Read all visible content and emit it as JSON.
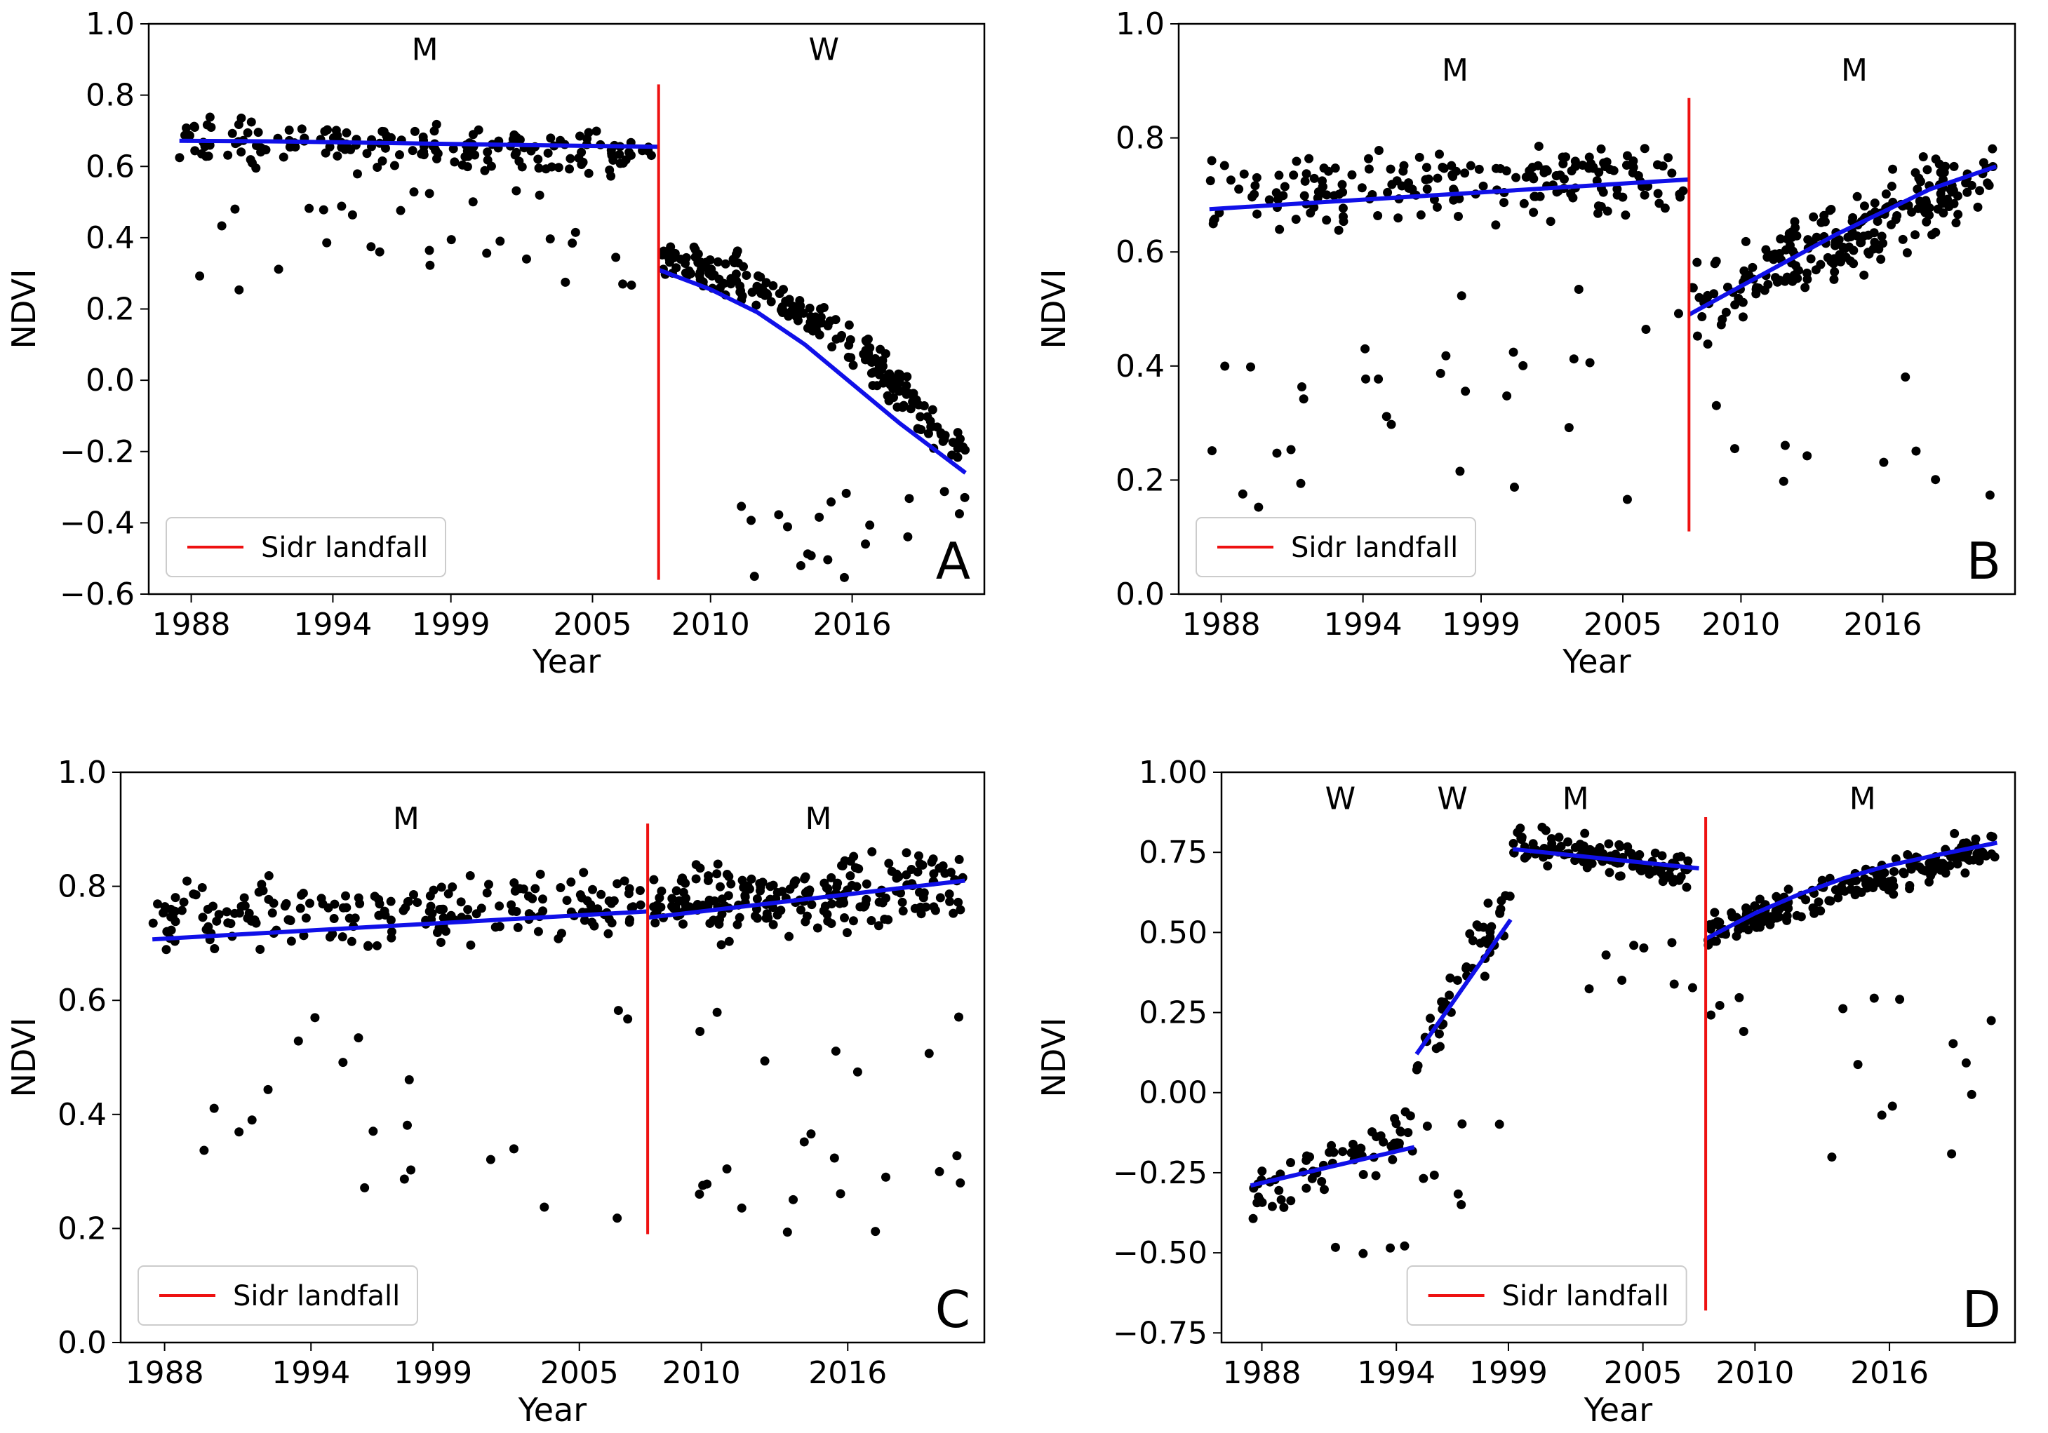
{
  "colors": {
    "points": "#000000",
    "fit": "#1010e8",
    "landfall": "#ee1111",
    "frame": "#000000"
  },
  "chart_data": [
    {
      "id": "A",
      "type": "scatter",
      "panel_letter": "A",
      "xlabel": "Year",
      "ylabel": "NDVI",
      "xlim": [
        1986.2,
        2021.6
      ],
      "ylim": [
        -0.6,
        1.0
      ],
      "xticks": [
        1988,
        1994,
        1999,
        2005,
        2010,
        2016
      ],
      "yticks": [
        -0.6,
        -0.4,
        -0.2,
        0.0,
        0.2,
        0.4,
        0.6,
        0.8,
        1.0
      ],
      "ytick_labels": [
        "−0.6",
        "−0.4",
        "−0.2",
        "0.0",
        "0.2",
        "0.4",
        "0.6",
        "0.8",
        "1.0"
      ],
      "legend": {
        "label": "Sidr landfall",
        "position": "lower-left"
      },
      "landfall": {
        "x": 2007.8,
        "y": [
          -0.56,
          0.83
        ]
      },
      "segment_labels": [
        {
          "text": "M",
          "x": 1997.9,
          "y": 0.93
        },
        {
          "text": "W",
          "x": 2014.8,
          "y": 0.93
        }
      ],
      "fits": [
        {
          "x": [
            1987.5,
            1992,
            1997,
            2002,
            2007.8
          ],
          "y": [
            0.672,
            0.67,
            0.665,
            0.66,
            0.655
          ]
        },
        {
          "x": [
            2007.8,
            2010,
            2012,
            2014,
            2016,
            2018,
            2020.8
          ],
          "y": [
            0.31,
            0.255,
            0.19,
            0.1,
            -0.01,
            -0.12,
            -0.26
          ]
        }
      ],
      "gen": [
        {
          "x0": 1987.5,
          "x1": 2007.6,
          "n": 210,
          "base0": 0.68,
          "base1": 0.63,
          "spread": 0.09,
          "lowfrac": 0.12,
          "low": [
            0.22,
            0.55
          ]
        },
        {
          "x0": 2007.9,
          "x1": 2020.8,
          "n": 240,
          "base0": 0.33,
          "base1": -0.22,
          "curve": 1.8,
          "spread": 0.09,
          "lowfrac": 0.1,
          "low": [
            -0.56,
            -0.3
          ]
        }
      ]
    },
    {
      "id": "B",
      "type": "scatter",
      "panel_letter": "B",
      "xlabel": "Year",
      "ylabel": "NDVI",
      "xlim": [
        1986.2,
        2021.6
      ],
      "ylim": [
        0.0,
        1.0
      ],
      "xticks": [
        1988,
        1994,
        1999,
        2005,
        2010,
        2016
      ],
      "yticks": [
        0.0,
        0.2,
        0.4,
        0.6,
        0.8,
        1.0
      ],
      "ytick_labels": [
        "0.0",
        "0.2",
        "0.4",
        "0.6",
        "0.8",
        "1.0"
      ],
      "legend": {
        "label": "Sidr landfall",
        "position": "lower-left"
      },
      "landfall": {
        "x": 2007.8,
        "y": [
          0.11,
          0.87
        ]
      },
      "segment_labels": [
        {
          "text": "M",
          "x": 1997.9,
          "y": 0.92
        },
        {
          "text": "M",
          "x": 2014.8,
          "y": 0.92
        }
      ],
      "fits": [
        {
          "x": [
            1987.5,
            2007.8
          ],
          "y": [
            0.675,
            0.727
          ]
        },
        {
          "x": [
            2007.8,
            2010,
            2012,
            2014,
            2016,
            2018,
            2020.8
          ],
          "y": [
            0.49,
            0.54,
            0.585,
            0.63,
            0.67,
            0.71,
            0.75
          ]
        }
      ],
      "gen": [
        {
          "x0": 1987.5,
          "x1": 2007.6,
          "n": 220,
          "base0": 0.7,
          "base1": 0.74,
          "spread": 0.09,
          "lowfrac": 0.1,
          "low": [
            0.15,
            0.55
          ]
        },
        {
          "x0": 2007.9,
          "x1": 2020.8,
          "n": 230,
          "base0": 0.5,
          "base1": 0.75,
          "spread": 0.1,
          "lowfrac": 0.05,
          "low": [
            0.1,
            0.45
          ]
        }
      ]
    },
    {
      "id": "C",
      "type": "scatter",
      "panel_letter": "C",
      "xlabel": "Year",
      "ylabel": "NDVI",
      "xlim": [
        1986.2,
        2021.6
      ],
      "ylim": [
        0.0,
        1.0
      ],
      "xticks": [
        1988,
        1994,
        1999,
        2005,
        2010,
        2016
      ],
      "yticks": [
        0.0,
        0.2,
        0.4,
        0.6,
        0.8,
        1.0
      ],
      "ytick_labels": [
        "0.0",
        "0.2",
        "0.4",
        "0.6",
        "0.8",
        "1.0"
      ],
      "legend": {
        "label": "Sidr landfall",
        "position": "lower-left"
      },
      "landfall": {
        "x": 2007.8,
        "y": [
          0.19,
          0.91
        ]
      },
      "segment_labels": [
        {
          "text": "M",
          "x": 1997.9,
          "y": 0.92
        },
        {
          "text": "M",
          "x": 2014.8,
          "y": 0.92
        }
      ],
      "fits": [
        {
          "x": [
            1987.5,
            2007.8
          ],
          "y": [
            0.707,
            0.756
          ]
        },
        {
          "x": [
            2007.8,
            2020.8
          ],
          "y": [
            0.745,
            0.81
          ]
        }
      ],
      "gen": [
        {
          "x0": 1987.5,
          "x1": 2007.6,
          "n": 220,
          "base0": 0.74,
          "base1": 0.77,
          "spread": 0.08,
          "lowfrac": 0.08,
          "low": [
            0.2,
            0.6
          ]
        },
        {
          "x0": 2007.9,
          "x1": 2020.8,
          "n": 240,
          "base0": 0.77,
          "base1": 0.8,
          "spread": 0.09,
          "lowfrac": 0.1,
          "low": [
            0.18,
            0.6
          ]
        }
      ]
    },
    {
      "id": "D",
      "type": "scatter",
      "panel_letter": "D",
      "xlabel": "Year",
      "ylabel": "NDVI",
      "xlim": [
        1986.2,
        2021.6
      ],
      "ylim": [
        -0.78,
        1.0
      ],
      "xticks": [
        1988,
        1994,
        1999,
        2005,
        2010,
        2016
      ],
      "yticks": [
        -0.75,
        -0.5,
        -0.25,
        0.0,
        0.25,
        0.5,
        0.75,
        1.0
      ],
      "ytick_labels": [
        "−0.75",
        "−0.50",
        "−0.25",
        "0.00",
        "0.25",
        "0.50",
        "0.75",
        "1.00"
      ],
      "legend": {
        "label": "Sidr landfall",
        "position": "lower-center"
      },
      "landfall": {
        "x": 2007.8,
        "y": [
          -0.68,
          0.86
        ]
      },
      "segment_labels": [
        {
          "text": "W",
          "x": 1991.5,
          "y": 0.92
        },
        {
          "text": "W",
          "x": 1996.5,
          "y": 0.92
        },
        {
          "text": "M",
          "x": 2002.0,
          "y": 0.92
        },
        {
          "text": "M",
          "x": 2014.8,
          "y": 0.92
        }
      ],
      "fits": [
        {
          "x": [
            1987.5,
            1994.8
          ],
          "y": [
            -0.29,
            -0.17
          ]
        },
        {
          "x": [
            1994.9,
            1999.1
          ],
          "y": [
            0.12,
            0.54
          ]
        },
        {
          "x": [
            1999.2,
            2007.5
          ],
          "y": [
            0.76,
            0.7
          ]
        },
        {
          "x": [
            2007.8,
            2010,
            2012,
            2014,
            2016,
            2018,
            2020.8
          ],
          "y": [
            0.48,
            0.56,
            0.62,
            0.67,
            0.71,
            0.74,
            0.78
          ]
        }
      ],
      "gen": [
        {
          "x0": 1987.5,
          "x1": 1994.8,
          "n": 70,
          "base0": -0.32,
          "base1": -0.12,
          "spread": 0.12,
          "lowfrac": 0.05,
          "low": [
            -0.68,
            -0.45
          ]
        },
        {
          "x0": 1994.9,
          "x1": 1999.1,
          "n": 55,
          "base0": 0.1,
          "base1": 0.62,
          "spread": 0.14,
          "lowfrac": 0.15,
          "low": [
            -0.36,
            0.0
          ]
        },
        {
          "x0": 1999.2,
          "x1": 2007.6,
          "n": 130,
          "base0": 0.78,
          "base1": 0.68,
          "spread": 0.08,
          "lowfrac": 0.08,
          "low": [
            0.3,
            0.5
          ]
        },
        {
          "x0": 2007.9,
          "x1": 2020.8,
          "n": 210,
          "base0": 0.5,
          "base1": 0.78,
          "spread": 0.08,
          "lowfrac": 0.06,
          "low": [
            -0.22,
            0.3
          ]
        }
      ]
    }
  ]
}
